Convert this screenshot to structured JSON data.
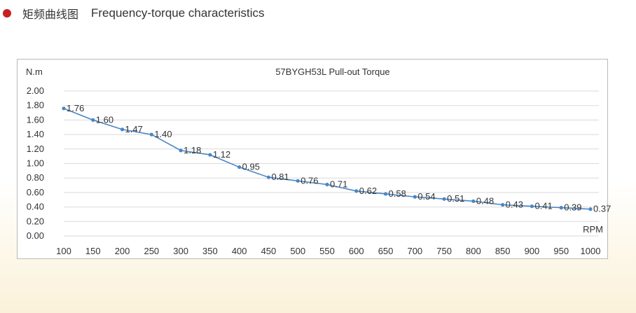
{
  "header": {
    "title_zh": "矩频曲线图",
    "title_en": "Frequency-torque characteristics",
    "bullet_color": "#c8201f"
  },
  "colors": {
    "line": "#4a86c5",
    "grid": "#d9d9d9",
    "frame": "#b9b9b9"
  },
  "chart_data": {
    "type": "line",
    "title": "57BYGH53L Pull-out Torque",
    "xlabel": "RPM",
    "ylabel": "N.m",
    "ylim": [
      0,
      2
    ],
    "yticks": [
      "2.00",
      "1.80",
      "1.60",
      "1.40",
      "1.20",
      "1.00",
      "0.80",
      "0.60",
      "0.40",
      "0.20",
      "0.00"
    ],
    "grid": true,
    "categories": [
      "100",
      "150",
      "200",
      "250",
      "300",
      "350",
      "400",
      "450",
      "500",
      "550",
      "600",
      "650",
      "700",
      "750",
      "800",
      "850",
      "900",
      "950",
      "1000"
    ],
    "series": [
      {
        "name": "Pull-out Torque",
        "values": [
          1.76,
          1.6,
          1.47,
          1.4,
          1.18,
          1.12,
          0.95,
          0.81,
          0.76,
          0.71,
          0.62,
          0.58,
          0.54,
          0.51,
          0.48,
          0.43,
          0.41,
          0.39,
          0.37
        ],
        "labels": [
          "1.76",
          "1.60",
          "1.47",
          "1.40",
          "1.18",
          "1.12",
          "0.95",
          "0.81",
          "0.76",
          "0.71",
          "0.62",
          "0.58",
          "0.54",
          "0.51",
          "0.48",
          "0.43",
          "0.41",
          "0.39",
          "0.37"
        ]
      }
    ]
  }
}
